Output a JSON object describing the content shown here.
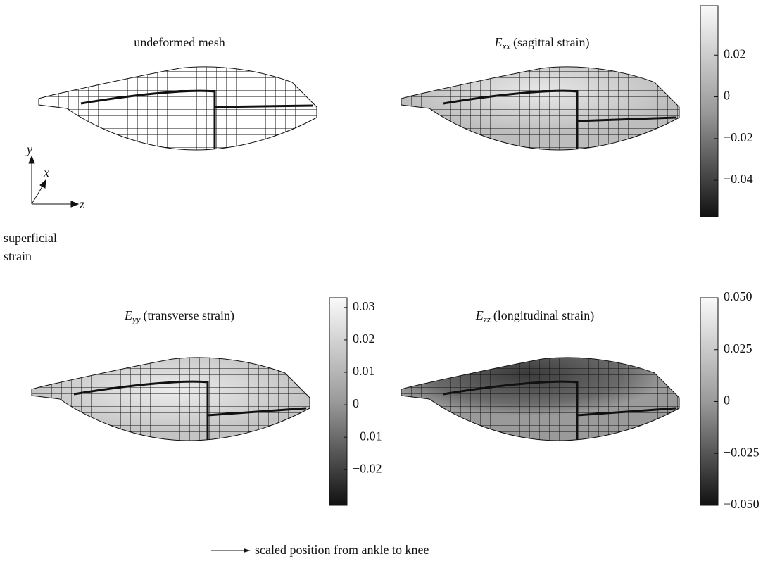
{
  "axes_label": {
    "y": "y",
    "x": "x",
    "z": "z"
  },
  "side_label": [
    "superficial",
    "strain"
  ],
  "panels": [
    {
      "title": "undeformed mesh"
    },
    {
      "symbol": "E",
      "subscript": "xx",
      "title": "(sagittal strain)",
      "colorbar": {
        "lim": [
          -0.0575,
          0.0437
        ],
        "ticks": [
          0.02,
          0,
          {
            "value": -0.02,
            "label": "−0.02"
          },
          {
            "value": -0.04,
            "label": "−0.04"
          }
        ]
      }
    },
    {
      "symbol": "E",
      "subscript": "yy",
      "title": "(transverse strain)",
      "colorbar": {
        "lim": [
          -0.031,
          0.033
        ],
        "ticks": [
          0.03,
          0.02,
          0.01,
          0,
          {
            "value": -0.01,
            "label": "−0.01"
          },
          {
            "value": -0.02,
            "label": "−0.02"
          }
        ]
      }
    },
    {
      "symbol": "E",
      "subscript": "zz",
      "title": "(longitudinal strain)",
      "colorbar": {
        "lim": [
          -0.05,
          0.05
        ],
        "ticks": [
          {
            "value": 0.05,
            "label": "0.050"
          },
          0.025,
          0,
          {
            "value": -0.025,
            "label": "−0.025"
          },
          {
            "value": -0.05,
            "label": "−0.050"
          }
        ]
      }
    }
  ],
  "footer": "scaled position from ankle to knee"
}
